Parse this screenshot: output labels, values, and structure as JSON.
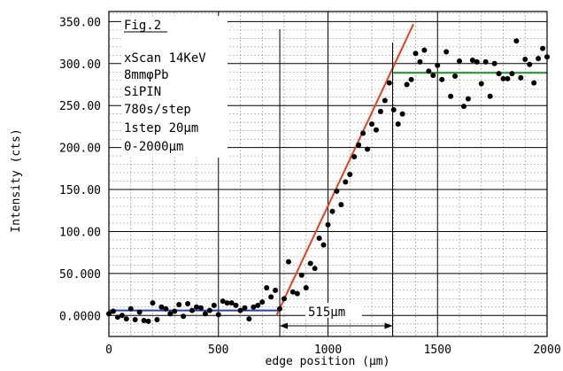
{
  "chart_data": {
    "type": "scatter",
    "title": "",
    "xlabel": "edge position (μm)",
    "ylabel": "Intensity (cts)",
    "xlim": [
      0,
      2000
    ],
    "ylim": [
      -25,
      362
    ],
    "grid": true,
    "x_ticks": [
      0,
      500,
      1000,
      1500,
      2000
    ],
    "x_tick_labels": [
      "0",
      "500",
      "1000",
      "1500",
      "2000"
    ],
    "y_ticks": [
      0,
      50,
      100,
      150,
      200,
      250,
      300,
      350
    ],
    "y_tick_labels": [
      "0.0000",
      "50.000",
      "100.00",
      "150.00",
      "200.00",
      "250.00",
      "300.00",
      "350.00"
    ],
    "annotations": [
      "Fig.2",
      "xScan 14KeV",
      "8mmφPb",
      "SiPIN",
      "780s/step",
      "1step 20μm",
      "0-2000μm"
    ],
    "dimension_label": "515μm",
    "markers": {
      "left_x": 780,
      "right_x": 1295
    },
    "colors": {
      "points": "#000000",
      "baseline_fit": "#2b3fb0",
      "rise_fit": "#e8401c",
      "plateau_fit": "#1a9a2a",
      "grid": "#9a9a9a"
    },
    "fits": [
      {
        "name": "baseline",
        "color": "#2b3fb0",
        "x": [
          0,
          780
        ],
        "y": [
          6,
          6
        ]
      },
      {
        "name": "rise",
        "color": "#e8401c",
        "x": [
          765,
          1390
        ],
        "y": [
          0,
          347
        ]
      },
      {
        "name": "plateau",
        "color": "#1a9a2a",
        "x": [
          1295,
          2000
        ],
        "y": [
          289,
          289
        ]
      }
    ],
    "series": [
      {
        "x": [
          0,
          20,
          40,
          60,
          80,
          100,
          120,
          140,
          160,
          180,
          200,
          220,
          240,
          260,
          280,
          300,
          320,
          340,
          360,
          380,
          400,
          420,
          440,
          460,
          480,
          500,
          520,
          540,
          560,
          580,
          600,
          620,
          640,
          660,
          680,
          700,
          720,
          740,
          760,
          780,
          800,
          820,
          840,
          860,
          880,
          900,
          920,
          940,
          960,
          980,
          1000,
          1020,
          1040,
          1060,
          1080,
          1100,
          1120,
          1140,
          1160,
          1180,
          1200,
          1220,
          1240,
          1260,
          1280,
          1300,
          1320,
          1340,
          1360,
          1380,
          1400,
          1420,
          1440,
          1460,
          1480,
          1500,
          1520,
          1540,
          1560,
          1580,
          1600,
          1620,
          1640,
          1660,
          1680,
          1700,
          1720,
          1740,
          1760,
          1780,
          1800,
          1820,
          1840,
          1860,
          1880,
          1900,
          1920,
          1940,
          1960,
          1980,
          2000
        ],
        "values": [
          2,
          5,
          -2,
          0,
          -4,
          8,
          -5,
          4,
          -6,
          -7,
          15,
          -5,
          10,
          8,
          2,
          5,
          13,
          -1,
          14,
          6,
          10,
          9,
          2,
          6,
          12,
          1,
          17,
          15,
          15,
          12,
          6,
          9,
          -4,
          10,
          12,
          16,
          33,
          22,
          30,
          8,
          20,
          64,
          28,
          26,
          48,
          33,
          62,
          56,
          92,
          84,
          108,
          124,
          148,
          132,
          159,
          168,
          189,
          203,
          217,
          198,
          228,
          221,
          243,
          256,
          277,
          245,
          228,
          240,
          275,
          281,
          312,
          302,
          316,
          291,
          286,
          298,
          281,
          314,
          261,
          285,
          303,
          249,
          258,
          304,
          302,
          276,
          302,
          261,
          300,
          288,
          282,
          282,
          288,
          327,
          283,
          305,
          299,
          277,
          306,
          318,
          308
        ]
      }
    ]
  }
}
